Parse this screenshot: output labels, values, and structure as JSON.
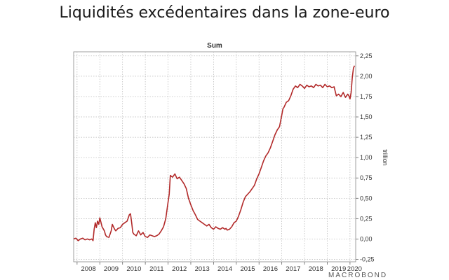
{
  "page": {
    "title": "Liquidités excédentaires dans la zone-euro",
    "brand": "MACROBOND"
  },
  "chart_data": {
    "type": "line",
    "title": "Sum",
    "xlabel": "",
    "ylabel": "trillion",
    "xlim": [
      2007.85,
      2020.25
    ],
    "ylim": [
      -0.28,
      2.3
    ],
    "grid": true,
    "yaxis_side": "right",
    "x_ticks": [
      "2008",
      "2009",
      "2010",
      "2011",
      "2012",
      "2013",
      "2014",
      "2015",
      "2016",
      "2017",
      "2018",
      "2019",
      "2020"
    ],
    "y_ticks": [
      "-0,25",
      "0,00",
      "0,25",
      "0,50",
      "0,75",
      "1,00",
      "1,25",
      "1,50",
      "1,75",
      "2,00",
      "2,25"
    ],
    "y_tick_values": [
      -0.25,
      0,
      0.25,
      0.5,
      0.75,
      1.0,
      1.25,
      1.5,
      1.75,
      2.0,
      2.25
    ],
    "series": [
      {
        "color": "#b22a2a",
        "x": [
          2007.85,
          2007.95,
          2008.05,
          2008.15,
          2008.25,
          2008.35,
          2008.45,
          2008.55,
          2008.65,
          2008.7,
          2008.75,
          2008.8,
          2008.85,
          2008.9,
          2008.95,
          2009.0,
          2009.1,
          2009.2,
          2009.25,
          2009.3,
          2009.4,
          2009.5,
          2009.55,
          2009.6,
          2009.65,
          2009.7,
          2009.8,
          2009.9,
          2010.0,
          2010.1,
          2010.2,
          2010.3,
          2010.35,
          2010.4,
          2010.45,
          2010.5,
          2010.55,
          2010.6,
          2010.65,
          2010.7,
          2010.8,
          2010.9,
          2011.0,
          2011.1,
          2011.2,
          2011.3,
          2011.4,
          2011.5,
          2011.6,
          2011.7,
          2011.8,
          2011.9,
          2011.95,
          2012.0,
          2012.05,
          2012.1,
          2012.2,
          2012.3,
          2012.4,
          2012.5,
          2012.6,
          2012.7,
          2012.8,
          2012.9,
          2013.0,
          2013.1,
          2013.2,
          2013.3,
          2013.4,
          2013.5,
          2013.6,
          2013.7,
          2013.8,
          2013.9,
          2014.0,
          2014.1,
          2014.2,
          2014.3,
          2014.4,
          2014.5,
          2014.55,
          2014.6,
          2014.7,
          2014.8,
          2014.9,
          2015.0,
          2015.1,
          2015.2,
          2015.3,
          2015.4,
          2015.5,
          2015.6,
          2015.7,
          2015.8,
          2015.9,
          2016.0,
          2016.1,
          2016.2,
          2016.3,
          2016.4,
          2016.5,
          2016.6,
          2016.7,
          2016.8,
          2016.9,
          2017.0,
          2017.05,
          2017.1,
          2017.2,
          2017.3,
          2017.4,
          2017.5,
          2017.6,
          2017.7,
          2017.8,
          2017.9,
          2018.0,
          2018.1,
          2018.2,
          2018.3,
          2018.4,
          2018.5,
          2018.6,
          2018.7,
          2018.8,
          2018.9,
          2019.0,
          2019.1,
          2019.2,
          2019.3,
          2019.4,
          2019.5,
          2019.6,
          2019.7,
          2019.8,
          2019.9,
          2019.95,
          2020.0,
          2020.05,
          2020.1,
          2020.15,
          2020.2
        ],
        "values": [
          0.0,
          0.01,
          -0.02,
          0.0,
          0.01,
          -0.01,
          0.0,
          -0.01,
          0.0,
          -0.02,
          0.12,
          0.2,
          0.14,
          0.22,
          0.18,
          0.26,
          0.15,
          0.1,
          0.05,
          0.03,
          0.02,
          0.1,
          0.18,
          0.15,
          0.12,
          0.1,
          0.13,
          0.14,
          0.18,
          0.2,
          0.22,
          0.3,
          0.31,
          0.2,
          0.08,
          0.06,
          0.05,
          0.04,
          0.07,
          0.1,
          0.05,
          0.08,
          0.03,
          0.02,
          0.05,
          0.04,
          0.03,
          0.04,
          0.06,
          0.1,
          0.15,
          0.25,
          0.35,
          0.45,
          0.55,
          0.78,
          0.76,
          0.8,
          0.74,
          0.76,
          0.72,
          0.68,
          0.62,
          0.5,
          0.42,
          0.35,
          0.3,
          0.24,
          0.22,
          0.2,
          0.18,
          0.16,
          0.18,
          0.14,
          0.12,
          0.15,
          0.13,
          0.12,
          0.14,
          0.12,
          0.13,
          0.11,
          0.12,
          0.15,
          0.2,
          0.22,
          0.28,
          0.36,
          0.45,
          0.52,
          0.55,
          0.58,
          0.62,
          0.66,
          0.74,
          0.8,
          0.88,
          0.96,
          1.02,
          1.06,
          1.12,
          1.2,
          1.28,
          1.34,
          1.38,
          1.52,
          1.6,
          1.62,
          1.68,
          1.7,
          1.76,
          1.84,
          1.88,
          1.86,
          1.9,
          1.88,
          1.85,
          1.89,
          1.87,
          1.88,
          1.86,
          1.9,
          1.88,
          1.89,
          1.86,
          1.9,
          1.87,
          1.88,
          1.86,
          1.87,
          1.76,
          1.78,
          1.75,
          1.8,
          1.74,
          1.78,
          1.76,
          1.72,
          1.8,
          1.98,
          2.1,
          2.13
        ]
      }
    ]
  }
}
